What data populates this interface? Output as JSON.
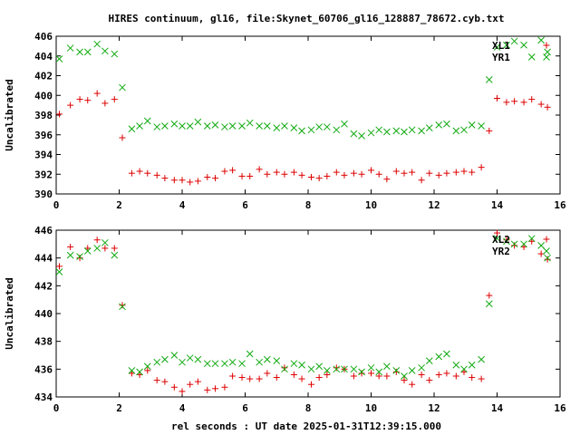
{
  "title": "HIRES continuum, gl16, file:Skynet_60706_gl16_128887_78672.cyb.txt",
  "xlabel": "rel seconds : UT date 2025-01-31T12:39:15.000",
  "colors": {
    "red": "#dd0000",
    "green": "#11aa11",
    "black": "#000000"
  },
  "chart_data": [
    {
      "type": "scatter",
      "ylabel": "Uncalibrated",
      "xlim": [
        0,
        16
      ],
      "ylim": [
        390,
        406
      ],
      "xticks": [
        "0",
        "2",
        "4",
        "6",
        "8",
        "10",
        "12",
        "14",
        "16"
      ],
      "yticks": [
        "390",
        "392",
        "394",
        "396",
        "398",
        "400",
        "402",
        "404",
        "406"
      ],
      "legend": [
        "XL1",
        "YR1"
      ],
      "series": [
        {
          "name": "XL1",
          "color": "red",
          "marker": "plus",
          "x": [
            0.1,
            0.45,
            0.75,
            1.0,
            1.3,
            1.55,
            1.85,
            2.1,
            2.4,
            2.65,
            2.9,
            3.2,
            3.45,
            3.75,
            4.0,
            4.25,
            4.5,
            4.8,
            5.05,
            5.35,
            5.6,
            5.9,
            6.15,
            6.45,
            6.7,
            7.0,
            7.25,
            7.55,
            7.8,
            8.1,
            8.35,
            8.6,
            8.9,
            9.15,
            9.45,
            9.7,
            10.0,
            10.25,
            10.5,
            10.8,
            11.05,
            11.3,
            11.6,
            11.85,
            12.15,
            12.4,
            12.7,
            12.95,
            13.2,
            13.5,
            13.75,
            14.0,
            14.3,
            14.55,
            14.85,
            15.1,
            15.4,
            15.6
          ],
          "y": [
            398.1,
            399.0,
            399.6,
            399.5,
            400.2,
            399.2,
            399.6,
            395.7,
            392.1,
            392.3,
            392.1,
            391.9,
            391.6,
            391.4,
            391.4,
            391.2,
            391.3,
            391.7,
            391.6,
            392.3,
            392.4,
            391.8,
            391.8,
            392.5,
            392.0,
            392.2,
            392.0,
            392.2,
            391.9,
            391.7,
            391.6,
            391.8,
            392.2,
            391.9,
            392.1,
            392.0,
            392.4,
            392.0,
            391.5,
            392.3,
            392.1,
            392.2,
            391.4,
            392.1,
            391.9,
            392.1,
            392.2,
            392.3,
            392.2,
            392.7,
            396.4,
            399.7,
            399.3,
            399.4,
            399.3,
            399.6,
            399.1,
            398.8
          ]
        },
        {
          "name": "YR1",
          "color": "green",
          "marker": "cross",
          "x": [
            0.1,
            0.45,
            0.75,
            1.0,
            1.3,
            1.55,
            1.85,
            2.1,
            2.4,
            2.65,
            2.9,
            3.2,
            3.45,
            3.75,
            4.0,
            4.25,
            4.5,
            4.8,
            5.05,
            5.35,
            5.6,
            5.9,
            6.15,
            6.45,
            6.7,
            7.0,
            7.25,
            7.55,
            7.8,
            8.1,
            8.35,
            8.6,
            8.9,
            9.15,
            9.45,
            9.7,
            10.0,
            10.25,
            10.5,
            10.8,
            11.05,
            11.3,
            11.6,
            11.85,
            12.15,
            12.4,
            12.7,
            12.95,
            13.2,
            13.5,
            13.75,
            14.0,
            14.3,
            14.55,
            14.85,
            15.1,
            15.4,
            15.6
          ],
          "y": [
            403.7,
            404.8,
            404.4,
            404.4,
            405.2,
            404.5,
            404.2,
            400.8,
            396.6,
            396.9,
            397.4,
            396.8,
            396.9,
            397.1,
            396.9,
            396.9,
            397.3,
            396.9,
            397.0,
            396.8,
            396.9,
            396.9,
            397.2,
            396.9,
            396.9,
            396.7,
            396.9,
            396.7,
            396.4,
            396.5,
            396.8,
            396.8,
            396.5,
            397.1,
            396.1,
            395.9,
            396.2,
            396.5,
            396.3,
            396.4,
            396.3,
            396.5,
            396.4,
            396.7,
            397.0,
            397.1,
            396.4,
            396.5,
            397.0,
            396.9,
            401.6,
            404.9,
            405.1,
            405.5,
            405.1,
            403.9,
            405.6,
            404.4
          ]
        }
      ]
    },
    {
      "type": "scatter",
      "ylabel": "Uncalibrated",
      "xlim": [
        0,
        16
      ],
      "ylim": [
        434,
        446
      ],
      "xticks": [
        "0",
        "2",
        "4",
        "6",
        "8",
        "10",
        "12",
        "14",
        "16"
      ],
      "yticks": [
        "434",
        "436",
        "438",
        "440",
        "442",
        "444",
        "446"
      ],
      "legend": [
        "XL2",
        "YR2"
      ],
      "series": [
        {
          "name": "XL2",
          "color": "red",
          "marker": "plus",
          "x": [
            0.1,
            0.45,
            0.75,
            1.0,
            1.3,
            1.55,
            1.85,
            2.1,
            2.4,
            2.65,
            2.9,
            3.2,
            3.45,
            3.75,
            4.0,
            4.25,
            4.5,
            4.8,
            5.05,
            5.35,
            5.6,
            5.9,
            6.15,
            6.45,
            6.7,
            7.0,
            7.25,
            7.55,
            7.8,
            8.1,
            8.35,
            8.6,
            8.9,
            9.15,
            9.45,
            9.7,
            10.0,
            10.25,
            10.5,
            10.8,
            11.05,
            11.3,
            11.6,
            11.85,
            12.15,
            12.4,
            12.7,
            12.95,
            13.2,
            13.5,
            13.75,
            14.0,
            14.3,
            14.55,
            14.85,
            15.1,
            15.4,
            15.6
          ],
          "y": [
            443.4,
            444.8,
            444.0,
            444.7,
            445.3,
            444.7,
            444.7,
            440.6,
            435.7,
            435.6,
            435.9,
            435.2,
            435.1,
            434.7,
            434.4,
            434.9,
            435.1,
            434.5,
            434.6,
            434.7,
            435.5,
            435.4,
            435.3,
            435.3,
            435.7,
            435.4,
            436.1,
            435.6,
            435.3,
            434.9,
            435.4,
            435.6,
            436.1,
            436.0,
            435.5,
            435.7,
            435.7,
            435.5,
            435.5,
            435.8,
            435.2,
            434.9,
            435.6,
            435.2,
            435.6,
            435.7,
            435.5,
            435.8,
            435.4,
            435.3,
            441.3,
            445.8,
            445.3,
            444.9,
            444.8,
            445.2,
            444.3,
            443.9
          ]
        },
        {
          "name": "YR2",
          "color": "green",
          "marker": "cross",
          "x": [
            0.1,
            0.45,
            0.75,
            1.0,
            1.3,
            1.55,
            1.85,
            2.1,
            2.4,
            2.65,
            2.9,
            3.2,
            3.45,
            3.75,
            4.0,
            4.25,
            4.5,
            4.8,
            5.05,
            5.35,
            5.6,
            5.9,
            6.15,
            6.45,
            6.7,
            7.0,
            7.25,
            7.55,
            7.8,
            8.1,
            8.35,
            8.6,
            8.9,
            9.15,
            9.45,
            9.7,
            10.0,
            10.25,
            10.5,
            10.8,
            11.05,
            11.3,
            11.6,
            11.85,
            12.15,
            12.4,
            12.7,
            12.95,
            13.2,
            13.5,
            13.75,
            14.0,
            14.3,
            14.55,
            14.85,
            15.1,
            15.4,
            15.6
          ],
          "y": [
            443.0,
            444.2,
            444.1,
            444.5,
            444.7,
            445.1,
            444.2,
            440.5,
            435.9,
            435.8,
            436.2,
            436.5,
            436.7,
            437.0,
            436.5,
            436.8,
            436.7,
            436.4,
            436.4,
            436.4,
            436.5,
            436.4,
            437.1,
            436.5,
            436.7,
            436.6,
            436.0,
            436.4,
            436.3,
            436.0,
            436.2,
            435.9,
            436.0,
            436.0,
            436.0,
            435.8,
            436.1,
            435.8,
            436.2,
            435.9,
            435.5,
            435.9,
            436.1,
            436.6,
            436.9,
            437.1,
            436.3,
            436.0,
            436.3,
            436.7,
            440.7,
            445.4,
            445.2,
            445.0,
            445.0,
            445.4,
            444.9,
            444.0
          ]
        }
      ]
    }
  ]
}
